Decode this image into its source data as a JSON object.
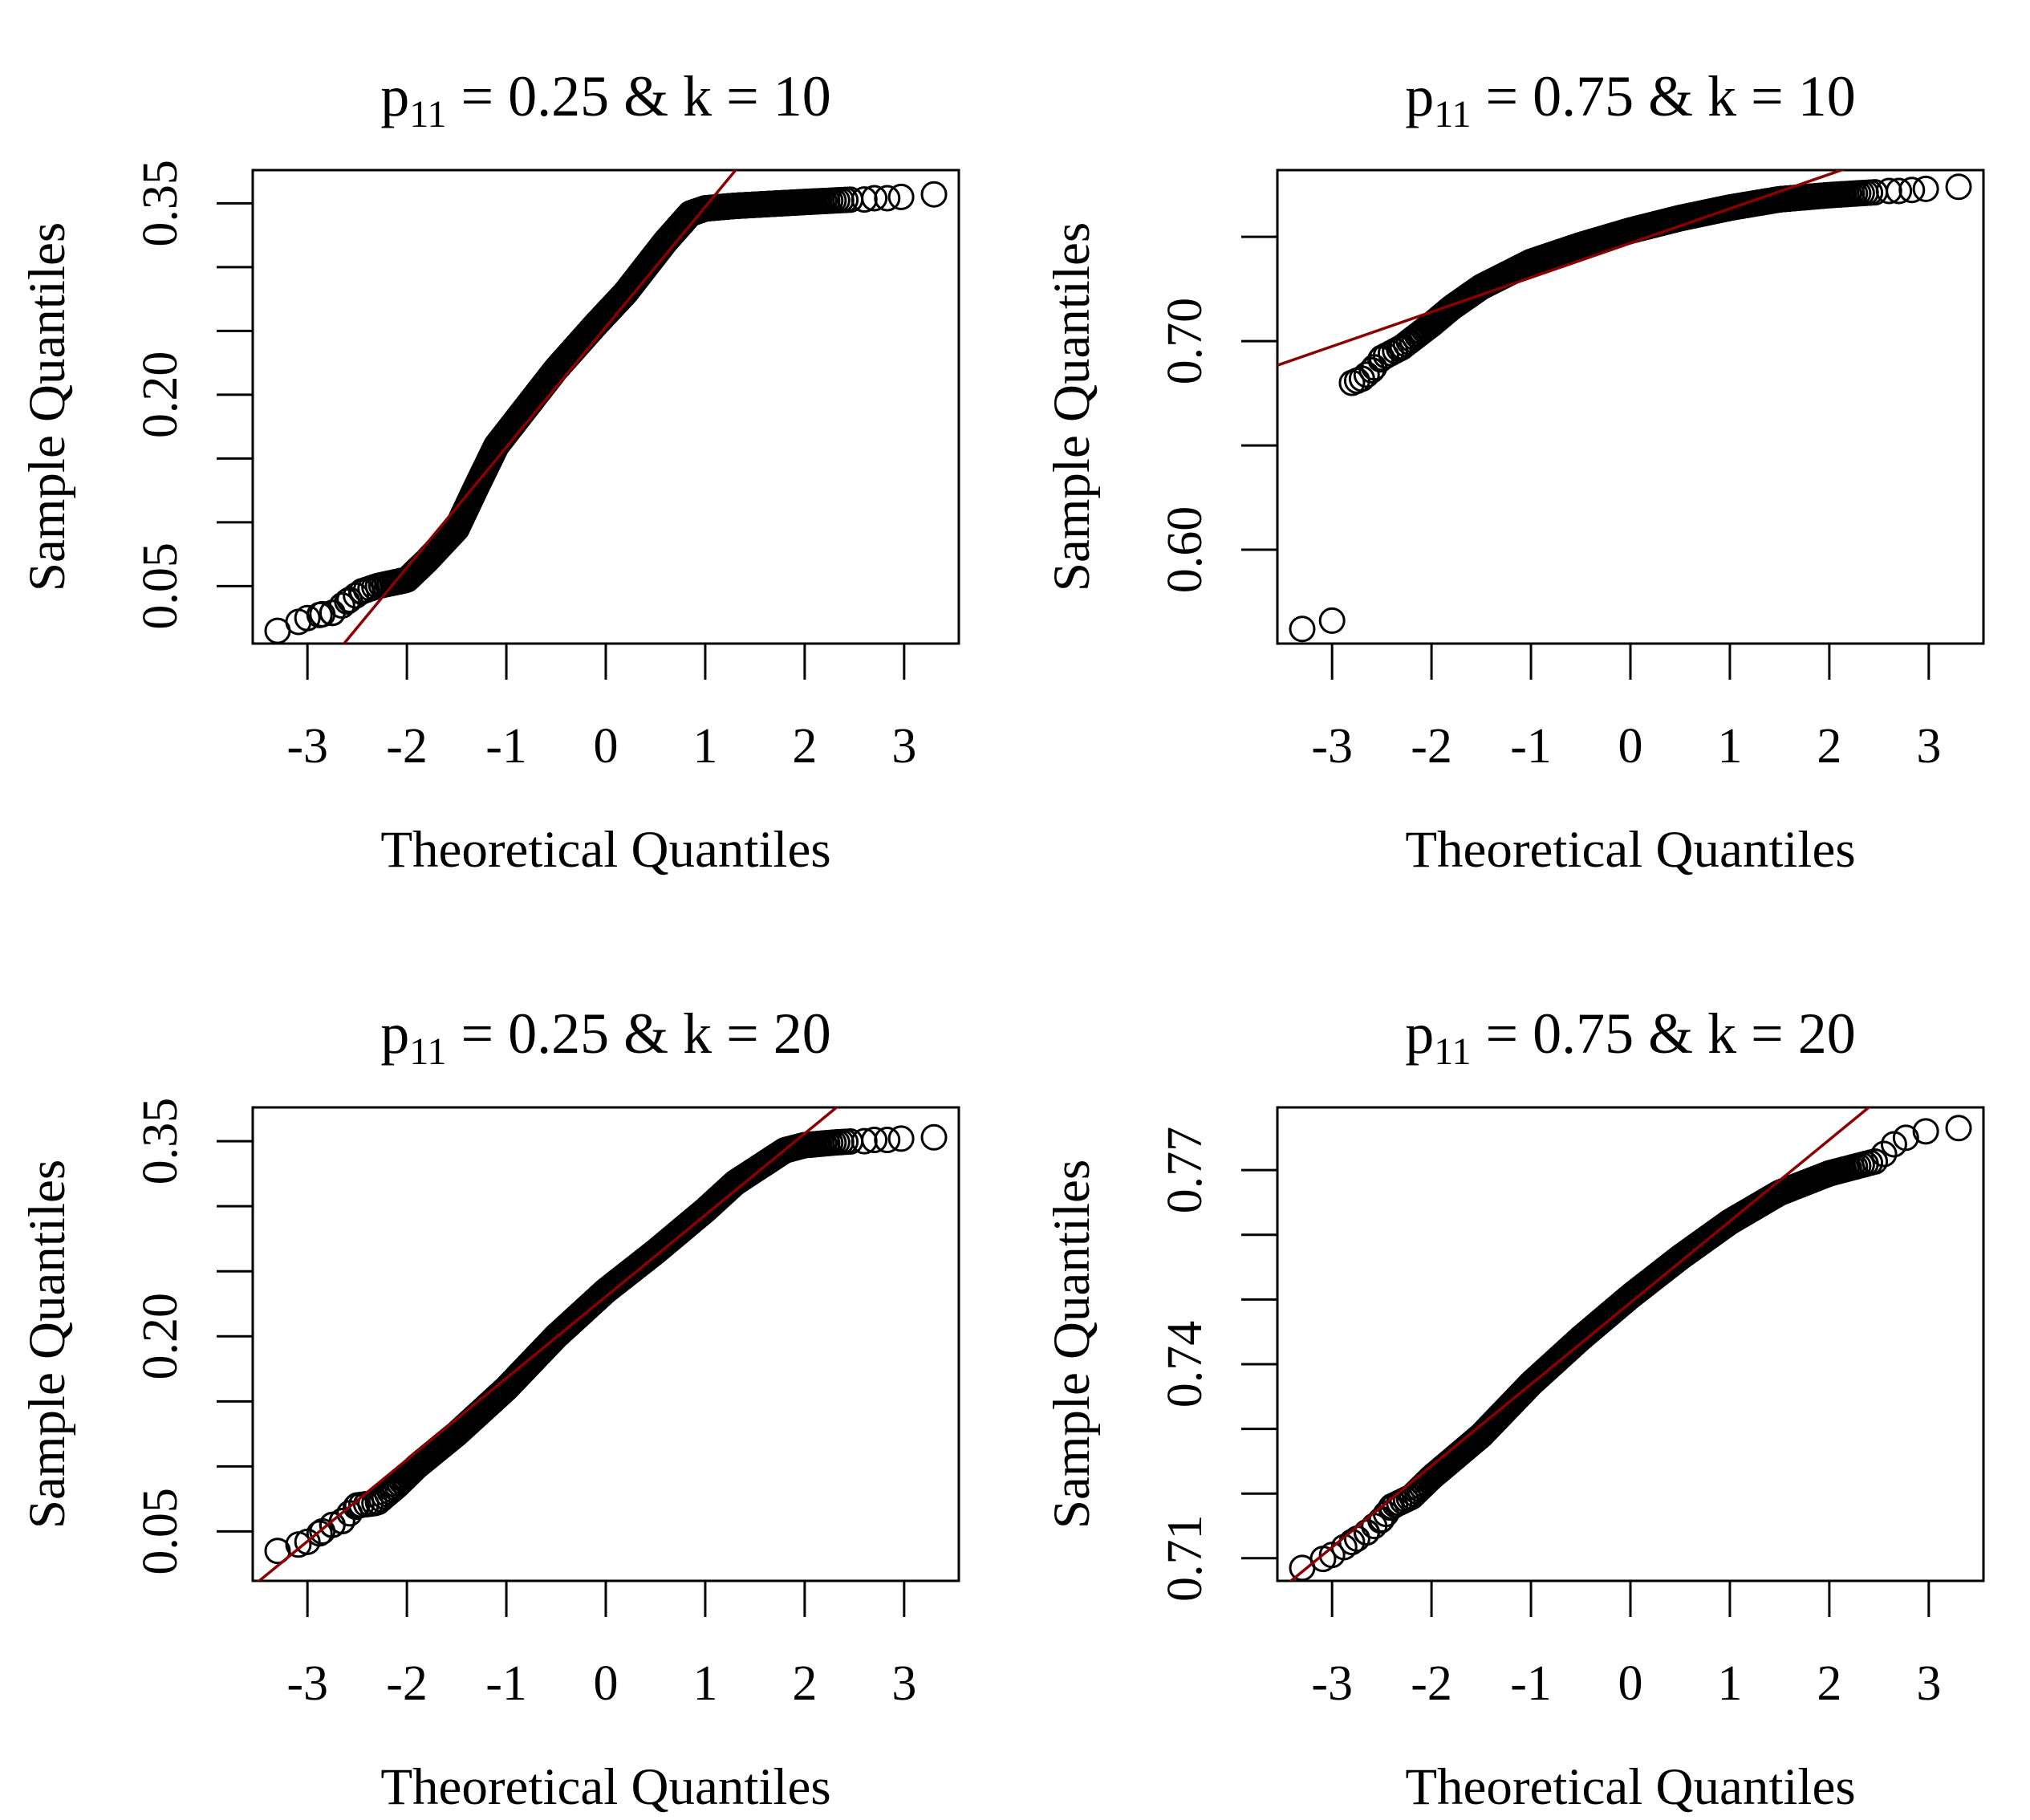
{
  "figure": {
    "xlabel": "Theoretical Quantiles",
    "ylabel": "Sample Quantiles",
    "colors": {
      "points": "#000000",
      "qqline": "#8b0000",
      "frame": "#000000"
    }
  },
  "chart_data": [
    {
      "type": "scatter",
      "title": {
        "base": "p",
        "sub": "11",
        "rest": " = 0.25  &  k = 10"
      },
      "xlabel": "Theoretical Quantiles",
      "ylabel": "Sample Quantiles",
      "xlim": [
        -3.55,
        3.55
      ],
      "ylim": [
        0.005,
        0.376
      ],
      "xticks": [
        -3,
        -2,
        -1,
        0,
        1,
        2,
        3
      ],
      "xtick_labels": [
        "-3",
        "-2",
        "-1",
        "0",
        "1",
        "2",
        "3"
      ],
      "yticks": [
        0.05,
        0.1,
        0.15,
        0.2,
        0.25,
        0.3,
        0.35
      ],
      "ytick_labels": [
        "0.05",
        "",
        "",
        "0.20",
        "",
        "",
        "0.35"
      ],
      "qqline": {
        "intercept": 0.253,
        "slope": 0.0942
      },
      "curve": [
        [
          -3.3,
          0.015
        ],
        [
          -3.0,
          0.025
        ],
        [
          -2.85,
          0.028
        ],
        [
          -2.75,
          0.029
        ],
        [
          -2.6,
          0.038
        ],
        [
          -2.45,
          0.046
        ],
        [
          -2.3,
          0.05
        ],
        [
          -2.0,
          0.055
        ],
        [
          -1.8,
          0.07
        ],
        [
          -1.5,
          0.095
        ],
        [
          -1.3,
          0.128
        ],
        [
          -1.1,
          0.16
        ],
        [
          -0.7,
          0.2
        ],
        [
          -0.5,
          0.22
        ],
        [
          -0.1,
          0.255
        ],
        [
          0.2,
          0.28
        ],
        [
          0.6,
          0.32
        ],
        [
          0.85,
          0.342
        ],
        [
          1.0,
          0.346
        ],
        [
          1.3,
          0.348
        ],
        [
          2.0,
          0.351
        ],
        [
          2.5,
          0.353
        ]
      ],
      "tail_points": [
        [
          2.6,
          0.353
        ],
        [
          2.7,
          0.354
        ],
        [
          2.83,
          0.354
        ],
        [
          2.97,
          0.355
        ],
        [
          3.3,
          0.357
        ]
      ]
    },
    {
      "type": "scatter",
      "title": {
        "base": "p",
        "sub": "11",
        "rest": " = 0.75  &  k = 10"
      },
      "xlabel": "Theoretical Quantiles",
      "ylabel": "Sample Quantiles",
      "xlim": [
        -3.55,
        3.55
      ],
      "ylim": [
        0.555,
        0.782
      ],
      "xticks": [
        -3,
        -2,
        -1,
        0,
        1,
        2,
        3
      ],
      "xtick_labels": [
        "-3",
        "-2",
        "-1",
        "0",
        "1",
        "2",
        "3"
      ],
      "yticks": [
        0.6,
        0.65,
        0.7,
        0.75
      ],
      "ytick_labels": [
        "0.60",
        "",
        "0.70",
        ""
      ],
      "qqline": {
        "intercept": 0.747,
        "slope": 0.0165
      },
      "scatter_points": [
        [
          -3.3,
          0.562
        ],
        [
          -3.0,
          0.566
        ]
      ],
      "curve": [
        [
          -2.8,
          0.68
        ],
        [
          -2.7,
          0.682
        ],
        [
          -2.6,
          0.686
        ],
        [
          -2.5,
          0.692
        ],
        [
          -2.3,
          0.697
        ],
        [
          -2.0,
          0.708
        ],
        [
          -1.8,
          0.716
        ],
        [
          -1.5,
          0.726
        ],
        [
          -1.0,
          0.738
        ],
        [
          -0.5,
          0.746
        ],
        [
          0.0,
          0.753
        ],
        [
          0.5,
          0.759
        ],
        [
          1.0,
          0.764
        ],
        [
          1.5,
          0.768
        ],
        [
          2.0,
          0.77
        ],
        [
          2.5,
          0.7715
        ]
      ],
      "tail_points": [
        [
          2.6,
          0.772
        ],
        [
          2.7,
          0.772
        ],
        [
          2.83,
          0.7725
        ],
        [
          2.97,
          0.773
        ],
        [
          3.3,
          0.774
        ]
      ]
    },
    {
      "type": "scatter",
      "title": {
        "base": "p",
        "sub": "11",
        "rest": " = 0.25  &  k = 20"
      },
      "xlabel": "Theoretical Quantiles",
      "ylabel": "Sample Quantiles",
      "xlim": [
        -3.55,
        3.55
      ],
      "ylim": [
        0.012,
        0.376
      ],
      "xticks": [
        -3,
        -2,
        -1,
        0,
        1,
        2,
        3
      ],
      "xtick_labels": [
        "-3",
        "-2",
        "-1",
        "0",
        "1",
        "2",
        "3"
      ],
      "yticks": [
        0.05,
        0.1,
        0.15,
        0.2,
        0.25,
        0.3,
        0.35
      ],
      "ytick_labels": [
        "0.05",
        "",
        "",
        "0.20",
        "",
        "",
        "0.35"
      ],
      "qqline": {
        "intercept": 0.2305,
        "slope": 0.0627
      },
      "curve": [
        [
          -3.3,
          0.035
        ],
        [
          -3.0,
          0.042
        ],
        [
          -2.85,
          0.05
        ],
        [
          -2.75,
          0.055
        ],
        [
          -2.65,
          0.058
        ],
        [
          -2.5,
          0.07
        ],
        [
          -2.3,
          0.072
        ],
        [
          -2.1,
          0.085
        ],
        [
          -1.9,
          0.1
        ],
        [
          -1.5,
          0.125
        ],
        [
          -1.0,
          0.16
        ],
        [
          -0.5,
          0.2
        ],
        [
          0.0,
          0.235
        ],
        [
          0.5,
          0.265
        ],
        [
          1.0,
          0.297
        ],
        [
          1.3,
          0.318
        ],
        [
          1.6,
          0.333
        ],
        [
          1.8,
          0.343
        ],
        [
          2.0,
          0.347
        ],
        [
          2.3,
          0.349
        ],
        [
          2.5,
          0.35
        ]
      ],
      "tail_points": [
        [
          2.6,
          0.35
        ],
        [
          2.7,
          0.351
        ],
        [
          2.83,
          0.351
        ],
        [
          2.97,
          0.352
        ],
        [
          3.3,
          0.353
        ]
      ]
    },
    {
      "type": "scatter",
      "title": {
        "base": "p",
        "sub": "11",
        "rest": " = 0.75  &  k = 20"
      },
      "xlabel": "Theoretical Quantiles",
      "ylabel": "Sample Quantiles",
      "xlim": [
        -3.55,
        3.55
      ],
      "ylim": [
        0.7065,
        0.7797
      ],
      "xticks": [
        -3,
        -2,
        -1,
        0,
        1,
        2,
        3
      ],
      "xtick_labels": [
        "-3",
        "-2",
        "-1",
        "0",
        "1",
        "2",
        "3"
      ],
      "yticks": [
        0.71,
        0.72,
        0.73,
        0.74,
        0.75,
        0.76,
        0.77
      ],
      "ytick_labels": [
        "0.71",
        "",
        "",
        "0.74",
        "",
        "",
        "0.77"
      ],
      "qqline": {
        "intercept": 0.7495,
        "slope": 0.0126
      },
      "curve": [
        [
          -3.3,
          0.7085
        ],
        [
          -3.0,
          0.7105
        ],
        [
          -2.8,
          0.7125
        ],
        [
          -2.65,
          0.714
        ],
        [
          -2.5,
          0.716
        ],
        [
          -2.4,
          0.718
        ],
        [
          -2.2,
          0.7195
        ],
        [
          -2.0,
          0.7225
        ],
        [
          -1.5,
          0.729
        ],
        [
          -1.0,
          0.737
        ],
        [
          -0.5,
          0.744
        ],
        [
          0.0,
          0.7505
        ],
        [
          0.5,
          0.7565
        ],
        [
          1.0,
          0.762
        ],
        [
          1.5,
          0.7665
        ],
        [
          2.0,
          0.7695
        ],
        [
          2.5,
          0.7715
        ]
      ],
      "tail_points": [
        [
          2.55,
          0.7725
        ],
        [
          2.65,
          0.774
        ],
        [
          2.77,
          0.775
        ],
        [
          2.97,
          0.776
        ],
        [
          3.3,
          0.7765
        ]
      ]
    }
  ]
}
